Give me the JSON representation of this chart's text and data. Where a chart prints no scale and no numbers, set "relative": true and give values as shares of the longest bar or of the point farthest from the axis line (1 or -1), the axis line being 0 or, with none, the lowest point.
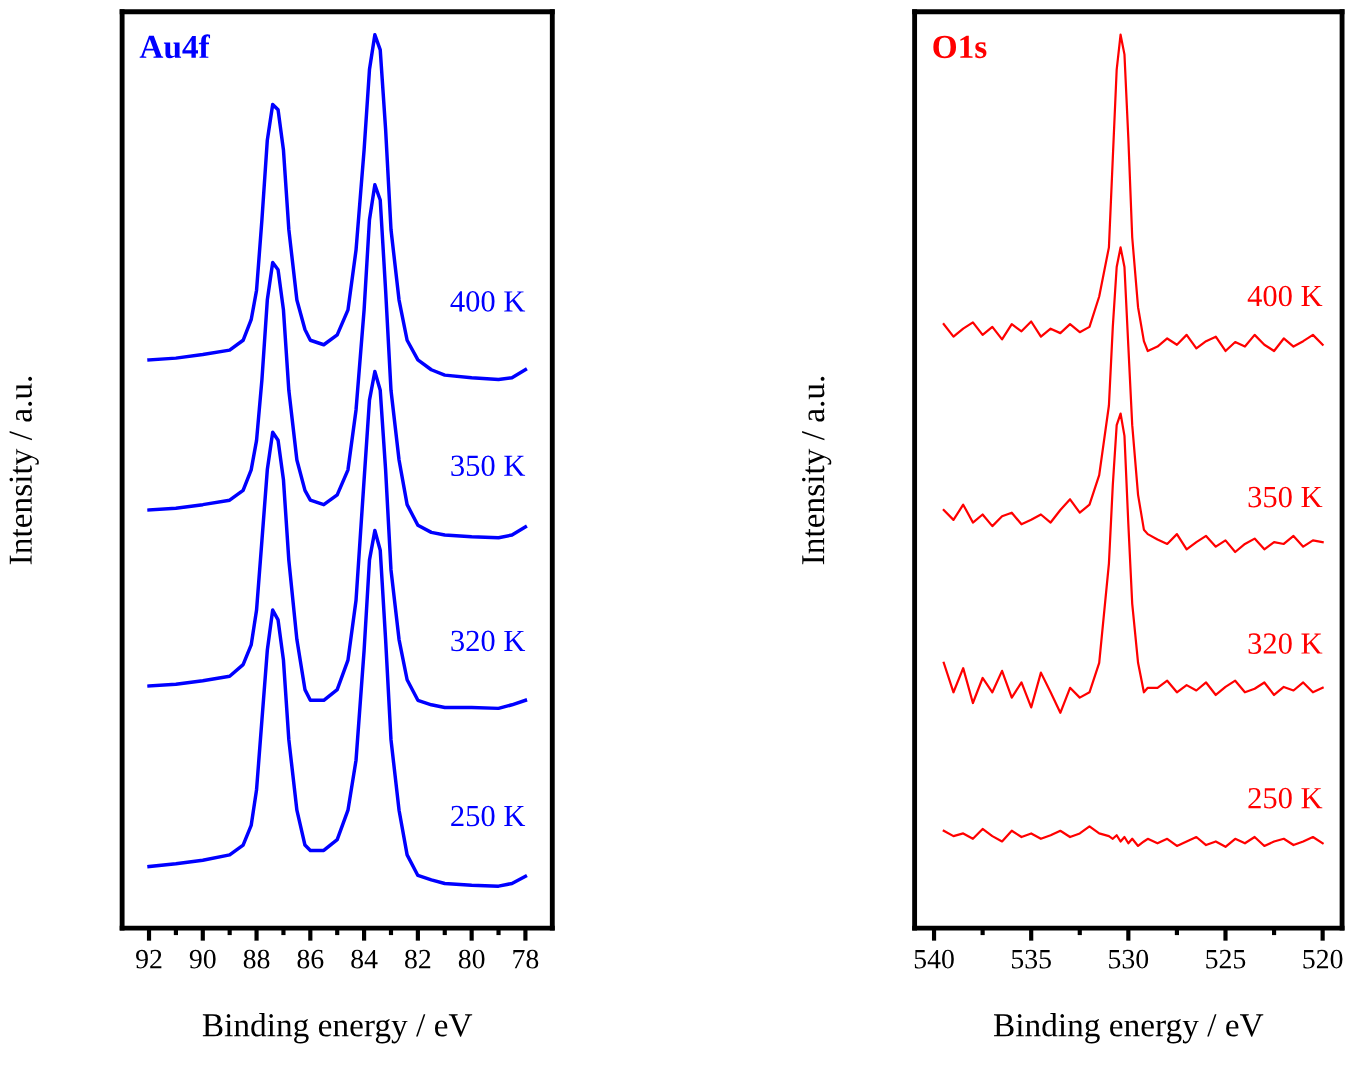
{
  "chart_data": [
    {
      "type": "line",
      "title": "Au4f",
      "xlabel": "Binding energy / eV",
      "ylabel": "Intensity / a.u.",
      "relative": true,
      "tick_labels": "x",
      "grid": false,
      "legend": false,
      "marker": "none",
      "line_style": "solid",
      "xlim": [
        93,
        77
      ],
      "xticks": [
        92,
        {
          "value": 91,
          "label": null
        },
        90,
        {
          "value": 89,
          "label": null
        },
        88,
        {
          "value": 87,
          "label": null
        },
        86,
        {
          "value": 85,
          "label": null
        },
        84,
        {
          "value": 83,
          "label": null
        },
        82,
        {
          "value": 81,
          "label": null
        },
        80,
        {
          "value": 79,
          "label": null
        },
        78
      ],
      "x": [
        92,
        91,
        90,
        89,
        88.5,
        88.2,
        88,
        87.8,
        87.6,
        87.4,
        87.2,
        87,
        86.8,
        86.5,
        86.2,
        86,
        85.5,
        85,
        84.6,
        84.3,
        84,
        83.8,
        83.6,
        83.4,
        83.2,
        83,
        82.7,
        82.4,
        82,
        81.5,
        81,
        80,
        79,
        78.5,
        78
      ],
      "series": [
        {
          "name": "400 K",
          "color": "#0000ff",
          "values": [
            0.636,
            0.638,
            0.642,
            0.647,
            0.658,
            0.681,
            0.714,
            0.793,
            0.882,
            0.922,
            0.916,
            0.871,
            0.782,
            0.703,
            0.67,
            0.658,
            0.653,
            0.664,
            0.692,
            0.759,
            0.871,
            0.961,
            1.0,
            0.983,
            0.894,
            0.782,
            0.703,
            0.658,
            0.636,
            0.625,
            0.619,
            0.616,
            0.614,
            0.616,
            0.625
          ]
        },
        {
          "name": "350 K",
          "color": "#0000ff",
          "values": [
            0.468,
            0.47,
            0.474,
            0.479,
            0.49,
            0.513,
            0.546,
            0.614,
            0.703,
            0.745,
            0.737,
            0.692,
            0.602,
            0.524,
            0.49,
            0.479,
            0.474,
            0.485,
            0.513,
            0.58,
            0.692,
            0.793,
            0.832,
            0.815,
            0.714,
            0.602,
            0.524,
            0.474,
            0.451,
            0.443,
            0.44,
            0.438,
            0.437,
            0.44,
            0.449
          ]
        },
        {
          "name": "320 K",
          "color": "#0000ff",
          "values": [
            0.271,
            0.273,
            0.277,
            0.282,
            0.295,
            0.317,
            0.356,
            0.434,
            0.513,
            0.555,
            0.546,
            0.502,
            0.412,
            0.323,
            0.267,
            0.255,
            0.255,
            0.267,
            0.3,
            0.367,
            0.502,
            0.591,
            0.623,
            0.602,
            0.513,
            0.401,
            0.323,
            0.278,
            0.255,
            0.25,
            0.247,
            0.247,
            0.246,
            0.25,
            0.255
          ]
        },
        {
          "name": "250 K",
          "color": "#0000ff",
          "values": [
            0.069,
            0.072,
            0.076,
            0.082,
            0.093,
            0.115,
            0.155,
            0.233,
            0.311,
            0.356,
            0.345,
            0.3,
            0.211,
            0.132,
            0.093,
            0.087,
            0.087,
            0.099,
            0.132,
            0.188,
            0.311,
            0.412,
            0.445,
            0.423,
            0.323,
            0.211,
            0.132,
            0.082,
            0.059,
            0.054,
            0.05,
            0.048,
            0.047,
            0.05,
            0.058
          ]
        }
      ]
    },
    {
      "type": "line",
      "title": "O1s",
      "xlabel": "Binding energy / eV",
      "ylabel": "Intensity / a.u.",
      "relative": true,
      "tick_labels": "x",
      "grid": false,
      "legend": false,
      "marker": "none",
      "line_style": "solid",
      "xlim": [
        541,
        519
      ],
      "xticks": [
        540,
        {
          "value": 537.5,
          "label": null
        },
        535,
        {
          "value": 532.5,
          "label": null
        },
        530,
        {
          "value": 527.5,
          "label": null
        },
        525,
        {
          "value": 522.5,
          "label": null
        },
        520
      ],
      "x": [
        539.5,
        539,
        538.5,
        538,
        537.5,
        537,
        536.5,
        536,
        535.5,
        535,
        534.5,
        534,
        533.5,
        533,
        532.5,
        532,
        531.5,
        531,
        530.8,
        530.6,
        530.4,
        530.2,
        530,
        529.8,
        529.5,
        529.2,
        529,
        528.5,
        528,
        527.5,
        527,
        526.5,
        526,
        525.5,
        525,
        524.5,
        524,
        523.5,
        523,
        522.5,
        522,
        521.5,
        521,
        520.5,
        520
      ],
      "series": [
        {
          "name": "400 K",
          "color": "#ff0000",
          "values": [
            0.676,
            0.662,
            0.671,
            0.678,
            0.664,
            0.673,
            0.659,
            0.676,
            0.668,
            0.679,
            0.662,
            0.671,
            0.666,
            0.676,
            0.667,
            0.673,
            0.707,
            0.762,
            0.862,
            0.961,
            1.0,
            0.978,
            0.884,
            0.773,
            0.695,
            0.657,
            0.646,
            0.651,
            0.66,
            0.653,
            0.664,
            0.649,
            0.657,
            0.662,
            0.646,
            0.656,
            0.651,
            0.664,
            0.653,
            0.646,
            0.66,
            0.651,
            0.657,
            0.664,
            0.653
          ]
        },
        {
          "name": "350 K",
          "color": "#ff0000",
          "values": [
            0.468,
            0.457,
            0.474,
            0.454,
            0.463,
            0.45,
            0.461,
            0.465,
            0.452,
            0.457,
            0.463,
            0.454,
            0.468,
            0.48,
            0.465,
            0.474,
            0.507,
            0.585,
            0.673,
            0.74,
            0.762,
            0.74,
            0.651,
            0.563,
            0.485,
            0.446,
            0.441,
            0.435,
            0.43,
            0.441,
            0.424,
            0.432,
            0.439,
            0.427,
            0.434,
            0.421,
            0.43,
            0.436,
            0.424,
            0.432,
            0.43,
            0.439,
            0.427,
            0.434,
            0.432
          ]
        },
        {
          "name": "320 K",
          "color": "#ff0000",
          "values": [
            0.297,
            0.264,
            0.291,
            0.252,
            0.28,
            0.264,
            0.288,
            0.258,
            0.275,
            0.247,
            0.286,
            0.264,
            0.241,
            0.269,
            0.258,
            0.264,
            0.297,
            0.408,
            0.496,
            0.563,
            0.576,
            0.551,
            0.452,
            0.363,
            0.297,
            0.264,
            0.269,
            0.269,
            0.277,
            0.264,
            0.272,
            0.266,
            0.275,
            0.261,
            0.27,
            0.277,
            0.264,
            0.268,
            0.275,
            0.261,
            0.27,
            0.266,
            0.275,
            0.264,
            0.269
          ]
        },
        {
          "name": "250 K",
          "color": "#ff0000",
          "values": [
            0.109,
            0.103,
            0.106,
            0.1,
            0.111,
            0.103,
            0.097,
            0.109,
            0.102,
            0.106,
            0.1,
            0.104,
            0.109,
            0.102,
            0.106,
            0.114,
            0.106,
            0.103,
            0.1,
            0.104,
            0.097,
            0.102,
            0.095,
            0.1,
            0.092,
            0.097,
            0.1,
            0.095,
            0.1,
            0.092,
            0.097,
            0.102,
            0.093,
            0.097,
            0.091,
            0.1,
            0.095,
            0.102,
            0.092,
            0.097,
            0.1,
            0.093,
            0.097,
            0.102,
            0.095
          ]
        }
      ]
    }
  ]
}
